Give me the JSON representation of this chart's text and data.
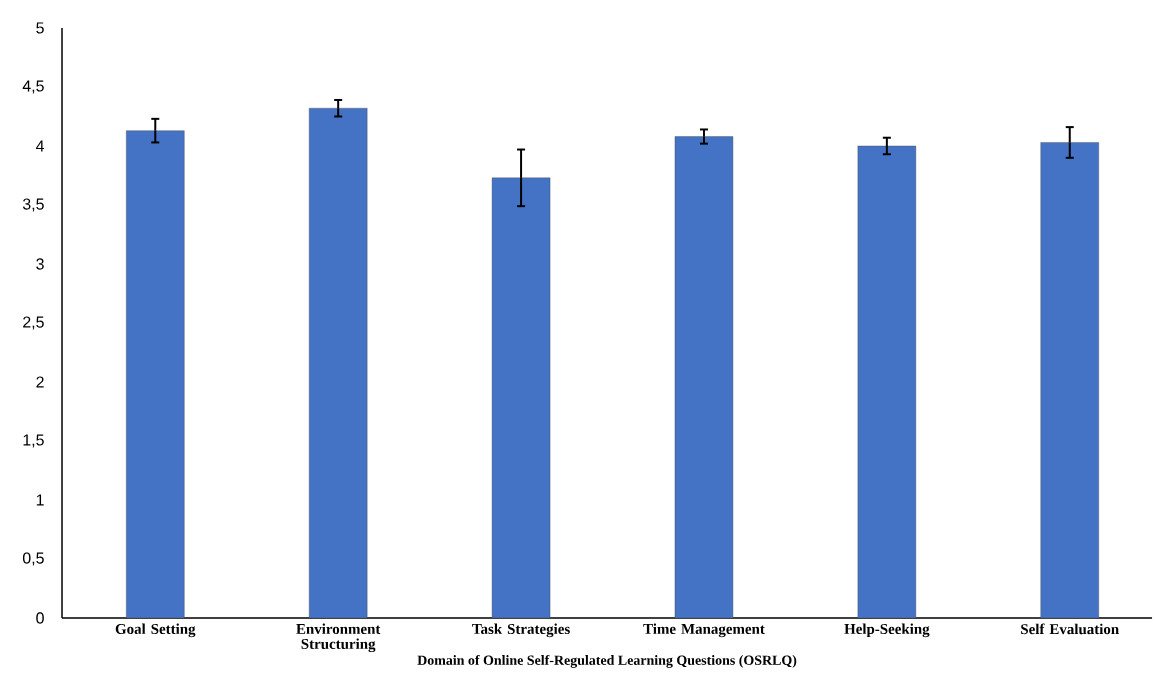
{
  "chart_data": {
    "type": "bar",
    "xlabel": "Domain of Online Self-Regulated Learning Questions (OSRLQ)",
    "categories": [
      "Goal Setting",
      "Environment Structuring",
      "Task Strategies",
      "Time Management",
      "Help-Seeking",
      "Self Evaluation"
    ],
    "values": [
      4.13,
      4.32,
      3.73,
      4.08,
      4.0,
      4.03
    ],
    "errors": [
      0.1,
      0.07,
      0.24,
      0.06,
      0.07,
      0.13
    ],
    "color": "#4472c4",
    "ylim": [
      0,
      5
    ],
    "yticks": [
      0,
      {
        "value": 0.5,
        "label": "0,5"
      },
      1,
      {
        "value": 1.5,
        "label": "1,5"
      },
      2,
      {
        "value": 2.5,
        "label": "2,5"
      },
      3,
      {
        "value": 3.5,
        "label": "3,5"
      },
      4,
      {
        "value": 4.5,
        "label": "4,5"
      },
      5
    ],
    "grid": false
  }
}
